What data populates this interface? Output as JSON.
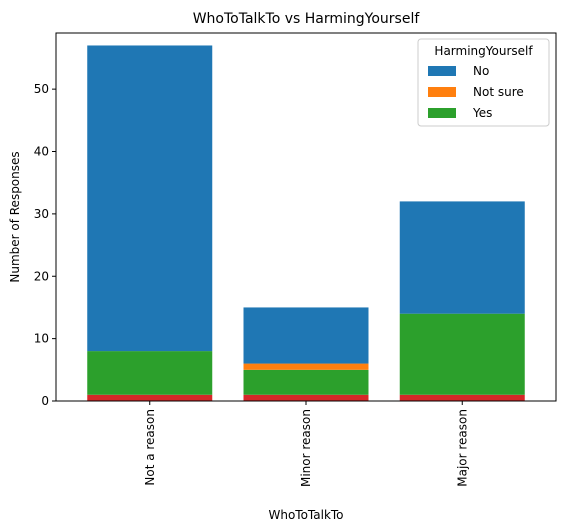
{
  "chart_data": {
    "type": "bar",
    "stacked": true,
    "title": "WhoToTalkTo vs HarmingYourself",
    "xlabel": "WhoToTalkTo",
    "ylabel": "Number of Responses",
    "categories": [
      "Not a reason",
      "Minor reason",
      "Major reason"
    ],
    "ylim": [
      0,
      59
    ],
    "yticks": [
      0,
      10,
      20,
      30,
      40,
      50
    ],
    "legend": {
      "title": "HarmingYourself",
      "placement": "top-right",
      "entries": [
        "No",
        "Not sure",
        "Yes"
      ]
    },
    "series": [
      {
        "name": "No",
        "color": "#1f77b4",
        "values": [
          49,
          9,
          18
        ],
        "legend": true
      },
      {
        "name": "Not sure",
        "color": "#ff7f0e",
        "values": [
          0,
          1,
          0
        ],
        "legend": true
      },
      {
        "name": "Yes",
        "color": "#2ca02c",
        "values": [
          7,
          4,
          13
        ],
        "legend": true
      },
      {
        "name": "",
        "color": "#d62728",
        "values": [
          1,
          1,
          1
        ],
        "legend": false
      }
    ],
    "stack_order": [
      3,
      2,
      1,
      0
    ],
    "grid": false
  }
}
